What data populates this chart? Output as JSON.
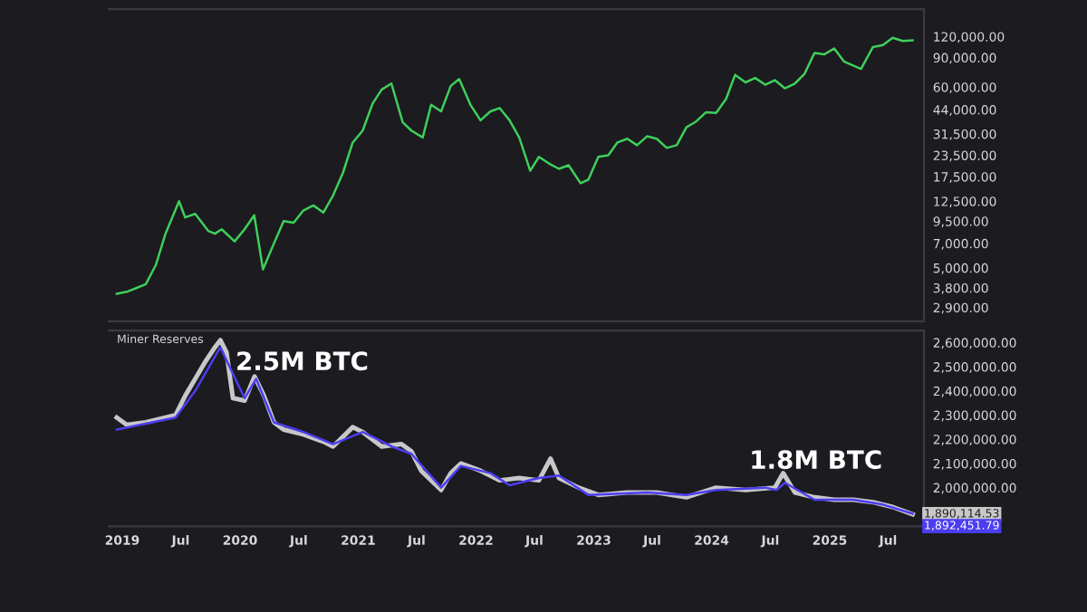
{
  "chart_data": [
    {
      "type": "line",
      "log": "y",
      "tick_labels": "y",
      "xlim": [
        "2018-11-20",
        "2025-10-20"
      ],
      "ylim": [
        2400,
        175000
      ],
      "yticks": [
        {
          "value": 2900,
          "label": "2,900.00"
        },
        {
          "value": 3800,
          "label": "3,800.00"
        },
        {
          "value": 5000,
          "label": "5,000.00"
        },
        {
          "value": 7000,
          "label": "7,000.00"
        },
        {
          "value": 9500,
          "label": "9,500.00"
        },
        {
          "value": 12500,
          "label": "12,500.00"
        },
        {
          "value": 17500,
          "label": "17,500.00"
        },
        {
          "value": 23500,
          "label": "23,500.00"
        },
        {
          "value": 31500,
          "label": "31,500.00"
        },
        {
          "value": 44000,
          "label": "44,000.00"
        },
        {
          "value": 60000,
          "label": "60,000.00"
        },
        {
          "value": 90000,
          "label": "90,000.00"
        },
        {
          "value": 120000,
          "label": "120,000.00"
        }
      ],
      "series": [
        {
          "color": "#3fcf5a",
          "x": [
            "2018-12-15",
            "2019-01-15",
            "2019-02-15",
            "2019-03-15",
            "2019-04-15",
            "2019-05-15",
            "2019-06-26",
            "2019-07-15",
            "2019-08-15",
            "2019-09-25",
            "2019-10-15",
            "2019-11-05",
            "2019-12-15",
            "2020-01-15",
            "2020-02-14",
            "2020-03-12",
            "2020-04-15",
            "2020-05-15",
            "2020-06-15",
            "2020-07-15",
            "2020-08-15",
            "2020-09-15",
            "2020-10-15",
            "2020-11-15",
            "2020-12-15",
            "2021-01-15",
            "2021-02-15",
            "2021-03-15",
            "2021-04-14",
            "2021-05-19",
            "2021-06-15",
            "2021-07-20",
            "2021-08-15",
            "2021-09-15",
            "2021-10-15",
            "2021-11-10",
            "2021-12-15",
            "2022-01-15",
            "2022-02-15",
            "2022-03-15",
            "2022-04-15",
            "2022-05-15",
            "2022-06-18",
            "2022-07-15",
            "2022-08-15",
            "2022-09-15",
            "2022-10-15",
            "2022-11-21",
            "2022-12-15",
            "2023-01-15",
            "2023-02-15",
            "2023-03-15",
            "2023-04-15",
            "2023-05-15",
            "2023-06-15",
            "2023-07-15",
            "2023-08-15",
            "2023-09-15",
            "2023-10-15",
            "2023-11-15",
            "2023-12-15",
            "2024-01-15",
            "2024-02-15",
            "2024-03-14",
            "2024-04-15",
            "2024-05-15",
            "2024-06-15",
            "2024-07-15",
            "2024-08-15",
            "2024-09-15",
            "2024-10-15",
            "2024-11-15",
            "2024-12-15",
            "2025-01-15",
            "2025-02-15",
            "2025-04-08",
            "2025-05-15",
            "2025-06-15",
            "2025-07-15",
            "2025-08-15",
            "2025-09-15"
          ],
          "values": [
            3500,
            3600,
            3800,
            4000,
            5200,
            8000,
            12500,
            10000,
            10500,
            8300,
            8000,
            8500,
            7200,
            8500,
            10300,
            4900,
            7000,
            9500,
            9300,
            11000,
            11800,
            10700,
            13500,
            18500,
            28000,
            33000,
            48000,
            58000,
            63000,
            37000,
            33000,
            30000,
            47000,
            43000,
            61000,
            67000,
            47000,
            38000,
            43000,
            45000,
            38000,
            30000,
            19000,
            23000,
            21000,
            19500,
            20500,
            16000,
            16800,
            23000,
            23500,
            28000,
            29500,
            27000,
            30500,
            29500,
            26000,
            27000,
            34500,
            37500,
            42500,
            42000,
            51000,
            71000,
            64000,
            68000,
            62000,
            66000,
            59000,
            63000,
            72000,
            96000,
            94000,
            102000,
            85000,
            77000,
            104000,
            107000,
            118000,
            113000,
            114000
          ]
        }
      ]
    },
    {
      "type": "line",
      "title": "Miner Reserves",
      "xlim": [
        "2018-11-20",
        "2025-10-20"
      ],
      "ylim": [
        1840000,
        2650000
      ],
      "xticks": [
        {
          "value": "2019-01-01",
          "label": "2019"
        },
        {
          "value": "2019-07-01",
          "label": "Jul"
        },
        {
          "value": "2020-01-01",
          "label": "2020"
        },
        {
          "value": "2020-07-01",
          "label": "Jul"
        },
        {
          "value": "2021-01-01",
          "label": "2021"
        },
        {
          "value": "2021-07-01",
          "label": "Jul"
        },
        {
          "value": "2022-01-01",
          "label": "2022"
        },
        {
          "value": "2022-07-01",
          "label": "Jul"
        },
        {
          "value": "2023-01-01",
          "label": "2023"
        },
        {
          "value": "2023-07-01",
          "label": "Jul"
        },
        {
          "value": "2024-01-01",
          "label": "2024"
        },
        {
          "value": "2024-07-01",
          "label": "Jul"
        },
        {
          "value": "2025-01-01",
          "label": "2025"
        },
        {
          "value": "2025-07-01",
          "label": "Jul"
        }
      ],
      "yticks": [
        {
          "value": 2000000,
          "label": "2,000,000.00"
        },
        {
          "value": 2100000,
          "label": "2,100,000.00"
        },
        {
          "value": 2200000,
          "label": "2,200,000.00"
        },
        {
          "value": 2300000,
          "label": "2,300,000.00"
        },
        {
          "value": 2400000,
          "label": "2,400,000.00"
        },
        {
          "value": 2500000,
          "label": "2,500,000.00"
        },
        {
          "value": 2600000,
          "label": "2,600,000.00"
        }
      ],
      "annotations": [
        {
          "text": "2.5M BTC",
          "x": "2019-11-01",
          "y": 2610000
        },
        {
          "text": "1.8M BTC",
          "x": "2025-09-15",
          "y": 1890114.53
        }
      ],
      "series": [
        {
          "color": "#c8c8c8",
          "x": [
            "2018-12-15",
            "2019-01-15",
            "2019-03-15",
            "2019-05-15",
            "2019-06-15",
            "2019-07-15",
            "2019-08-15",
            "2019-09-15",
            "2019-10-15",
            "2019-11-01",
            "2019-11-20",
            "2019-12-10",
            "2020-01-15",
            "2020-02-15",
            "2020-03-15",
            "2020-04-15",
            "2020-05-15",
            "2020-07-15",
            "2020-09-15",
            "2020-10-15",
            "2020-12-15",
            "2021-01-15",
            "2021-03-15",
            "2021-05-15",
            "2021-06-15",
            "2021-07-15",
            "2021-09-15",
            "2021-10-15",
            "2021-11-15",
            "2022-01-15",
            "2022-03-15",
            "2022-05-15",
            "2022-07-15",
            "2022-08-20",
            "2022-09-15",
            "2022-11-15",
            "2023-01-15",
            "2023-04-15",
            "2023-07-15",
            "2023-10-15",
            "2024-01-15",
            "2024-04-15",
            "2024-07-15",
            "2024-08-10",
            "2024-09-15",
            "2024-11-15",
            "2025-01-15",
            "2025-03-15",
            "2025-05-15",
            "2025-07-15",
            "2025-09-15"
          ],
          "values": [
            2290000,
            2260000,
            2270000,
            2290000,
            2300000,
            2380000,
            2450000,
            2520000,
            2580000,
            2610000,
            2560000,
            2370000,
            2360000,
            2460000,
            2380000,
            2270000,
            2240000,
            2220000,
            2190000,
            2170000,
            2250000,
            2230000,
            2170000,
            2180000,
            2150000,
            2070000,
            1990000,
            2060000,
            2100000,
            2070000,
            2030000,
            2040000,
            2030000,
            2120000,
            2040000,
            2000000,
            1970000,
            1980000,
            1980000,
            1960000,
            2000000,
            1990000,
            2000000,
            2060000,
            1980000,
            1960000,
            1950000,
            1950000,
            1940000,
            1920000,
            1890114.53
          ],
          "value_labels": [
            null,
            null,
            null,
            null,
            null,
            null,
            null,
            null,
            null,
            null,
            null,
            null,
            null,
            null,
            null,
            null,
            null,
            null,
            null,
            null,
            null,
            null,
            null,
            null,
            null,
            null,
            null,
            null,
            null,
            null,
            null,
            null,
            null,
            null,
            null,
            null,
            null,
            null,
            null,
            null,
            null,
            null,
            null,
            null,
            null,
            null,
            null,
            null,
            null,
            null,
            "1,890,114.53"
          ]
        },
        {
          "color": "#4b3df0",
          "x": [
            "2018-12-15",
            "2019-06-15",
            "2019-08-15",
            "2019-11-01",
            "2020-01-15",
            "2020-02-20",
            "2020-04-15",
            "2020-07-15",
            "2020-10-15",
            "2021-01-15",
            "2021-04-15",
            "2021-06-15",
            "2021-09-15",
            "2021-11-15",
            "2022-02-15",
            "2022-04-15",
            "2022-07-15",
            "2022-09-15",
            "2022-12-15",
            "2023-06-15",
            "2023-10-15",
            "2024-01-15",
            "2024-06-15",
            "2024-07-20",
            "2024-08-15",
            "2024-11-15",
            "2025-03-15",
            "2025-06-15",
            "2025-09-15"
          ],
          "values": [
            2240000,
            2290000,
            2400000,
            2580000,
            2370000,
            2450000,
            2270000,
            2230000,
            2180000,
            2230000,
            2170000,
            2140000,
            2000000,
            2090000,
            2060000,
            2010000,
            2040000,
            2050000,
            1970000,
            1980000,
            1970000,
            1990000,
            2000000,
            1990000,
            2020000,
            1950000,
            1950000,
            1930000,
            1892451.79
          ],
          "value_labels": [
            null,
            null,
            null,
            null,
            null,
            null,
            null,
            null,
            null,
            null,
            null,
            null,
            null,
            null,
            null,
            null,
            null,
            null,
            null,
            null,
            null,
            null,
            null,
            null,
            null,
            null,
            null,
            null,
            "1,892,451.79"
          ]
        }
      ]
    }
  ]
}
